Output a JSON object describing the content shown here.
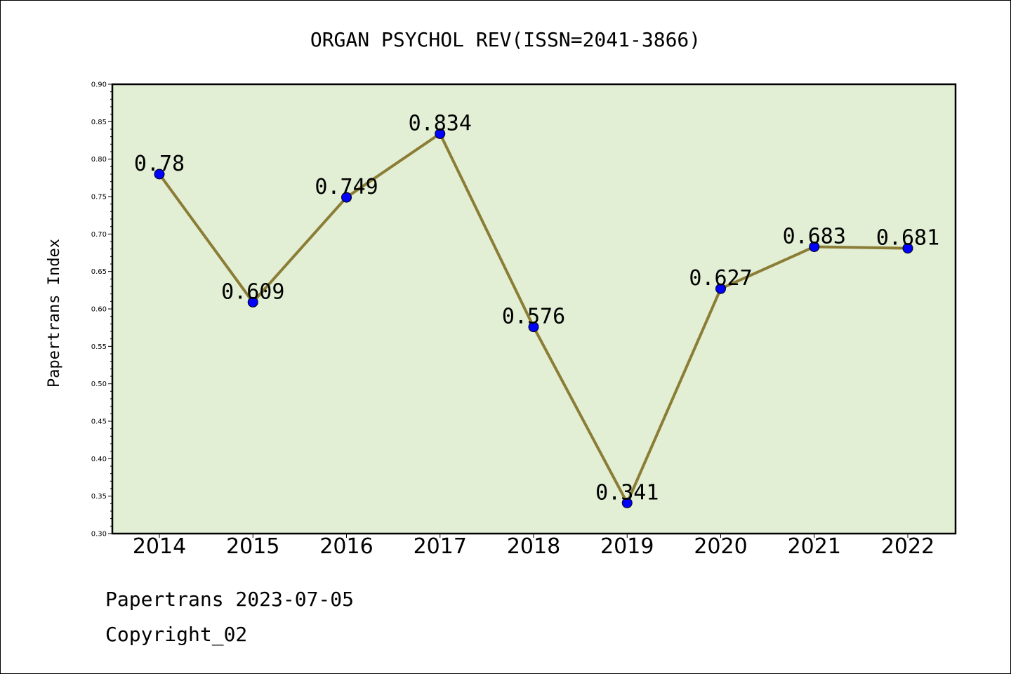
{
  "chart_data": {
    "type": "line",
    "title": "ORGAN PSYCHOL REV(ISSN=2041-3866)",
    "ylabel": "Papertrans Index",
    "xlabel": "",
    "categories": [
      "2014",
      "2015",
      "2016",
      "2017",
      "2018",
      "2019",
      "2020",
      "2021",
      "2022"
    ],
    "series": [
      {
        "values": [
          0.78,
          0.609,
          0.749,
          0.834,
          0.576,
          0.341,
          0.627,
          0.683,
          0.681
        ],
        "labels": [
          "0.78",
          "0.609",
          "0.749",
          "0.834",
          "0.576",
          "0.341",
          "0.627",
          "0.683",
          "0.681"
        ]
      }
    ],
    "ylim": [
      0.3,
      0.9
    ],
    "yticks": [
      "0.30",
      "0.35",
      "0.40",
      "0.45",
      "0.50",
      "0.55",
      "0.60",
      "0.65",
      "0.70",
      "0.75",
      "0.80",
      "0.85",
      "0.90"
    ],
    "grid": false,
    "legend": "none",
    "colors": {
      "plot_background": "#e2efd5",
      "line": "#8b7d35",
      "marker": "#0000ff"
    }
  },
  "footer": {
    "line1": "Papertrans 2023-07-05",
    "line2": "Copyright_02"
  }
}
